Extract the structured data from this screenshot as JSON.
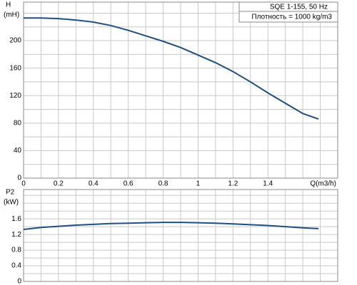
{
  "chart_data": [
    {
      "type": "line",
      "title": "SQE 1-155, 50 Hz",
      "subtitle": "Плотность = 1000 kg/m3",
      "ylabel": "H",
      "yunit": "(mH)",
      "xlabel": "Q(m3/h)",
      "x": [
        0,
        0.1,
        0.2,
        0.3,
        0.4,
        0.5,
        0.6,
        0.7,
        0.8,
        0.9,
        1.0,
        1.1,
        1.2,
        1.3,
        1.4,
        1.5,
        1.6,
        1.69
      ],
      "series": [
        {
          "color": "#1f4e85",
          "values": [
            233,
            233,
            232,
            230,
            227,
            222,
            215,
            207,
            199,
            190,
            179,
            168,
            155,
            140,
            124,
            109,
            94,
            86
          ]
        }
      ],
      "xlim": [
        0,
        1.8
      ],
      "xticks": [
        0,
        0.2,
        0.4,
        0.6,
        0.8,
        1,
        1.2,
        1.4
      ],
      "xminor": [
        0.1,
        0.3,
        0.5,
        0.7,
        0.9,
        1.1,
        1.3,
        1.5,
        1.6,
        1.7
      ],
      "ylim": [
        0,
        256
      ],
      "yticks": [
        0,
        40,
        80,
        120,
        160,
        200
      ],
      "yminor": [
        20,
        60,
        100,
        140,
        180,
        220,
        240
      ],
      "grid": true
    },
    {
      "type": "line",
      "ylabel": "P2",
      "yunit": "(kW)",
      "x": [
        0,
        0.1,
        0.2,
        0.3,
        0.4,
        0.5,
        0.6,
        0.7,
        0.8,
        0.9,
        1.0,
        1.1,
        1.2,
        1.3,
        1.4,
        1.5,
        1.6,
        1.69
      ],
      "series": [
        {
          "color": "#1f4e85",
          "values": [
            1.33,
            1.38,
            1.41,
            1.44,
            1.46,
            1.48,
            1.49,
            1.5,
            1.51,
            1.51,
            1.5,
            1.49,
            1.47,
            1.45,
            1.43,
            1.4,
            1.37,
            1.35
          ]
        }
      ],
      "xlim": [
        0,
        1.8
      ],
      "xticks": [],
      "xminor": [
        0.1,
        0.2,
        0.3,
        0.4,
        0.5,
        0.6,
        0.7,
        0.8,
        0.9,
        1,
        1.1,
        1.2,
        1.3,
        1.4,
        1.5,
        1.6,
        1.7
      ],
      "ylim": [
        0,
        2.35
      ],
      "yticks": [
        0,
        0.4,
        0.8,
        1.2,
        1.6
      ],
      "yminor": [
        0.2,
        0.6,
        1,
        1.4,
        1.8,
        2,
        2.2
      ],
      "grid": true
    }
  ]
}
